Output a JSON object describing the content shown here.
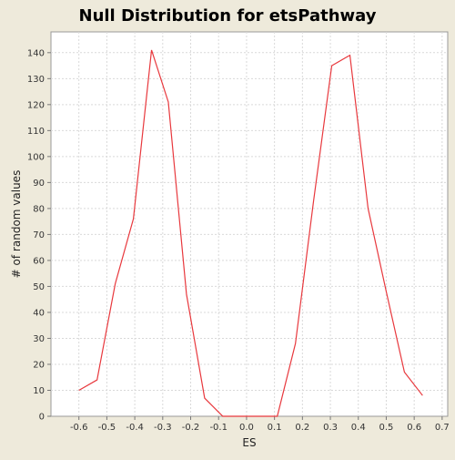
{
  "chart_data": {
    "type": "line",
    "title": "Null Distribution for etsPathway",
    "xlabel": "ES",
    "ylabel": "# of random values",
    "xlim": [
      -0.7,
      0.72
    ],
    "ylim": [
      0,
      148
    ],
    "x_ticks": [
      "-0.6",
      "-0.5",
      "-0.4",
      "-0.3",
      "-0.2",
      "-0.1",
      "0.0",
      "0.1",
      "0.2",
      "0.3",
      "0.4",
      "0.5",
      "0.6",
      "0.7"
    ],
    "x_tick_values": [
      -0.6,
      -0.5,
      -0.4,
      -0.3,
      -0.2,
      -0.1,
      0.0,
      0.1,
      0.2,
      0.3,
      0.4,
      0.5,
      0.6,
      0.7
    ],
    "y_ticks": [
      "0",
      "10",
      "20",
      "30",
      "40",
      "50",
      "60",
      "70",
      "80",
      "90",
      "100",
      "110",
      "120",
      "130",
      "140"
    ],
    "y_tick_values": [
      0,
      10,
      20,
      30,
      40,
      50,
      60,
      70,
      80,
      90,
      100,
      110,
      120,
      130,
      140
    ],
    "grid": true,
    "series": [
      {
        "color": "#e8383d",
        "points": [
          [
            -0.6,
            10
          ],
          [
            -0.535,
            14
          ],
          [
            -0.47,
            51
          ],
          [
            -0.405,
            76
          ],
          [
            -0.34,
            141
          ],
          [
            -0.28,
            121
          ],
          [
            -0.215,
            47
          ],
          [
            -0.15,
            7
          ],
          [
            -0.085,
            0
          ],
          [
            -0.02,
            0
          ],
          [
            0.045,
            0
          ],
          [
            0.11,
            0
          ],
          [
            0.175,
            28
          ],
          [
            0.24,
            83
          ],
          [
            0.305,
            135
          ],
          [
            0.37,
            139
          ],
          [
            0.435,
            80
          ],
          [
            0.5,
            48
          ],
          [
            0.565,
            17
          ],
          [
            0.63,
            8
          ]
        ]
      }
    ]
  }
}
